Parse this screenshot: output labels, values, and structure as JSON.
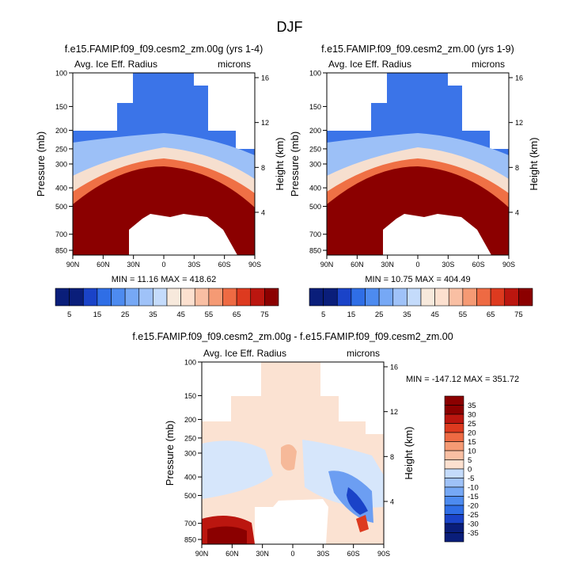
{
  "figure": {
    "title": "DJF",
    "variable": "Avg. Ice Eff. Radius",
    "units": "microns"
  },
  "colors": {
    "frame": "#000000",
    "blues": [
      "#0a1e7a",
      "#1a43c8",
      "#2f6ee6",
      "#4d8bf0",
      "#76a8f5",
      "#9fc2f8",
      "#c4dbfb"
    ],
    "pale": "#f7e9dc",
    "reds": [
      "#fce0cf",
      "#f9bfa3",
      "#f59a74",
      "#ee6a43",
      "#dd3a1f",
      "#bb160f",
      "#8b0000"
    ]
  },
  "chart_data": [
    {
      "id": "panel-a",
      "type": "heatmap",
      "title": "f.e15.FAMIP.f09_f09.cesm2_zm.00g (yrs 1-4)",
      "left_label": "Avg. Ice Eff. Radius",
      "right_label": "microns",
      "xlabel": "",
      "ylabel": "Pressure (mb)",
      "y2label": "Height (km)",
      "xticks": [
        "90N",
        "60N",
        "30N",
        "0",
        "30S",
        "60S",
        "90S"
      ],
      "yticks": [
        100,
        150,
        200,
        250,
        300,
        400,
        500,
        700,
        850
      ],
      "ylim": [
        100,
        900
      ],
      "y2ticks": [
        16,
        12,
        8,
        4
      ],
      "stats": "MIN = 11.16   MAX = 418.62",
      "colorbar": {
        "orientation": "horizontal",
        "levels": [
          5,
          10,
          15,
          20,
          25,
          30,
          35,
          40,
          45,
          50,
          55,
          60,
          65,
          70,
          75
        ],
        "labels": [
          "5",
          "15",
          "25",
          "35",
          "45",
          "55",
          "65",
          "75"
        ]
      }
    },
    {
      "id": "panel-b",
      "type": "heatmap",
      "title": "f.e15.FAMIP.f09_f09.cesm2_zm.00 (yrs 1-9)",
      "left_label": "Avg. Ice Eff. Radius",
      "right_label": "microns",
      "xlabel": "",
      "ylabel": "Pressure (mb)",
      "y2label": "Height (km)",
      "xticks": [
        "90N",
        "60N",
        "30N",
        "0",
        "30S",
        "60S",
        "90S"
      ],
      "yticks": [
        100,
        150,
        200,
        250,
        300,
        400,
        500,
        700,
        850
      ],
      "ylim": [
        100,
        900
      ],
      "y2ticks": [
        16,
        12,
        8,
        4
      ],
      "stats": "MIN = 10.75   MAX = 404.49",
      "colorbar": {
        "orientation": "horizontal",
        "levels": [
          5,
          10,
          15,
          20,
          25,
          30,
          35,
          40,
          45,
          50,
          55,
          60,
          65,
          70,
          75
        ],
        "labels": [
          "5",
          "15",
          "25",
          "35",
          "45",
          "55",
          "65",
          "75"
        ]
      }
    },
    {
      "id": "panel-diff",
      "type": "heatmap",
      "title": "f.e15.FAMIP.f09_f09.cesm2_zm.00g - f.e15.FAMIP.f09_f09.cesm2_zm.00",
      "left_label": "Avg. Ice Eff. Radius",
      "right_label": "microns",
      "xlabel": "",
      "ylabel": "Pressure (mb)",
      "y2label": "Height (km)",
      "xticks": [
        "90N",
        "60N",
        "30N",
        "0",
        "30S",
        "60S",
        "90S"
      ],
      "yticks": [
        100,
        150,
        200,
        250,
        300,
        400,
        500,
        700,
        850
      ],
      "ylim": [
        100,
        900
      ],
      "y2ticks": [
        16,
        12,
        8,
        4
      ],
      "stats": "MIN = -147.12   MAX = 351.72",
      "colorbar": {
        "orientation": "vertical",
        "labels": [
          "35",
          "30",
          "25",
          "20",
          "15",
          "10",
          "5",
          "0",
          "-5",
          "-10",
          "-15",
          "-20",
          "-25",
          "-30",
          "-35"
        ]
      }
    }
  ]
}
